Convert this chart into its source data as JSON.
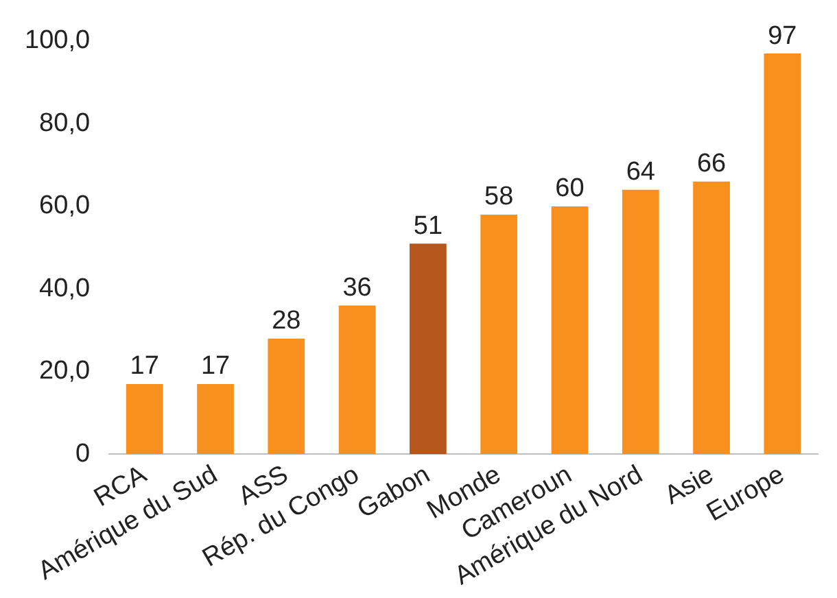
{
  "chart_data": {
    "type": "bar",
    "categories": [
      "RCA",
      "Amérique du Sud",
      "ASS",
      "Rép. du Congo",
      "Gabon",
      "Monde",
      "Cameroun",
      "Amérique du Nord",
      "Asie",
      "Europe"
    ],
    "values": [
      17,
      17,
      28,
      36,
      51,
      58,
      60,
      64,
      66,
      97
    ],
    "colors": [
      "#f7901e",
      "#f7901e",
      "#f7901e",
      "#f7901e",
      "#b5571d",
      "#f7901e",
      "#f7901e",
      "#f7901e",
      "#f7901e",
      "#f7901e"
    ],
    "ylim": [
      0,
      100
    ],
    "yticks": [
      {
        "value": 0,
        "label": "0"
      },
      {
        "value": 20,
        "label": "20,0"
      },
      {
        "value": 40,
        "label": "40,0"
      },
      {
        "value": 60,
        "label": "60,0"
      },
      {
        "value": 80,
        "label": "80,0"
      },
      {
        "value": 100,
        "label": "100,0"
      }
    ],
    "data_labels": true,
    "grid": false,
    "legend": false
  }
}
